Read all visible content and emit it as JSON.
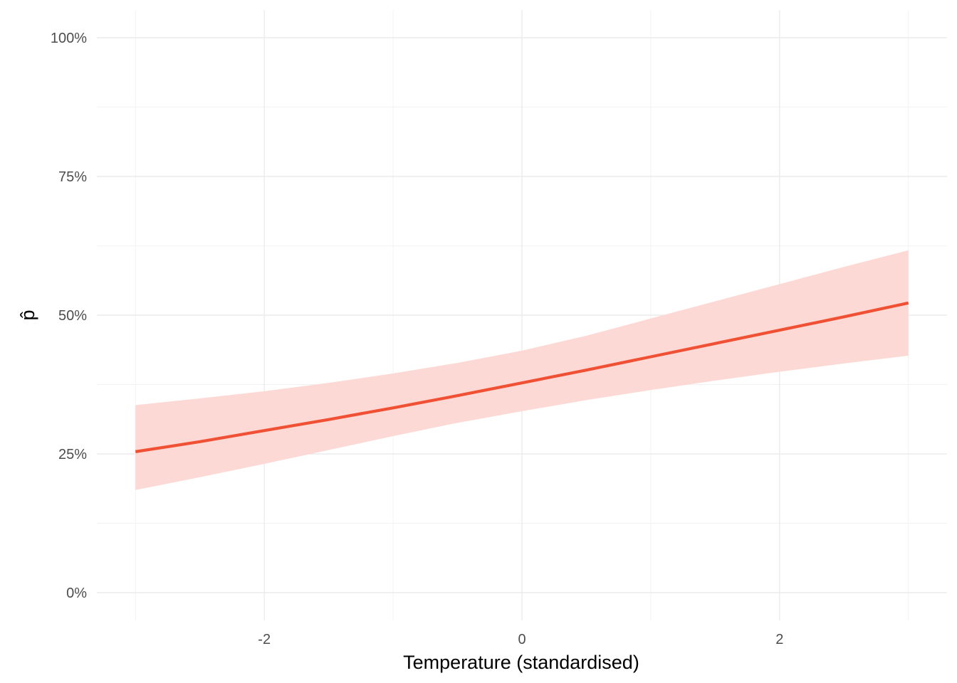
{
  "chart_data": {
    "type": "line",
    "title": "",
    "xlabel": "Temperature (standardised)",
    "ylabel": "p̂",
    "xlim": [
      -3.3,
      3.3
    ],
    "ylim": [
      -0.05,
      1.05
    ],
    "x_ticks": [
      -2,
      0,
      2
    ],
    "x_tick_labels": [
      "-2",
      "0",
      "2"
    ],
    "y_ticks": [
      0,
      0.25,
      0.5,
      0.75,
      1.0
    ],
    "y_tick_labels": [
      "0%",
      "25%",
      "50%",
      "75%",
      "100%"
    ],
    "grid": true,
    "legend": "none",
    "series": [
      {
        "type": "line",
        "color": "#f05033",
        "x": [
          -3,
          -2.5,
          -2,
          -1.5,
          -1,
          -0.5,
          0,
          0.5,
          1,
          1.5,
          2,
          2.5,
          3
        ],
        "y": [
          0.254,
          0.272,
          0.292,
          0.312,
          0.333,
          0.355,
          0.378,
          0.401,
          0.425,
          0.449,
          0.473,
          0.497,
          0.522
        ]
      },
      {
        "type": "ribbon",
        "color": "#fcd9d4",
        "x": [
          -3,
          -2.5,
          -2,
          -1.5,
          -1,
          -0.5,
          0,
          0.5,
          1,
          1.5,
          2,
          2.5,
          3
        ],
        "lower": [
          0.185,
          0.208,
          0.232,
          0.257,
          0.282,
          0.306,
          0.327,
          0.347,
          0.365,
          0.382,
          0.398,
          0.413,
          0.427
        ],
        "upper": [
          0.338,
          0.35,
          0.363,
          0.378,
          0.395,
          0.414,
          0.436,
          0.463,
          0.494,
          0.525,
          0.556,
          0.587,
          0.617
        ]
      }
    ]
  }
}
